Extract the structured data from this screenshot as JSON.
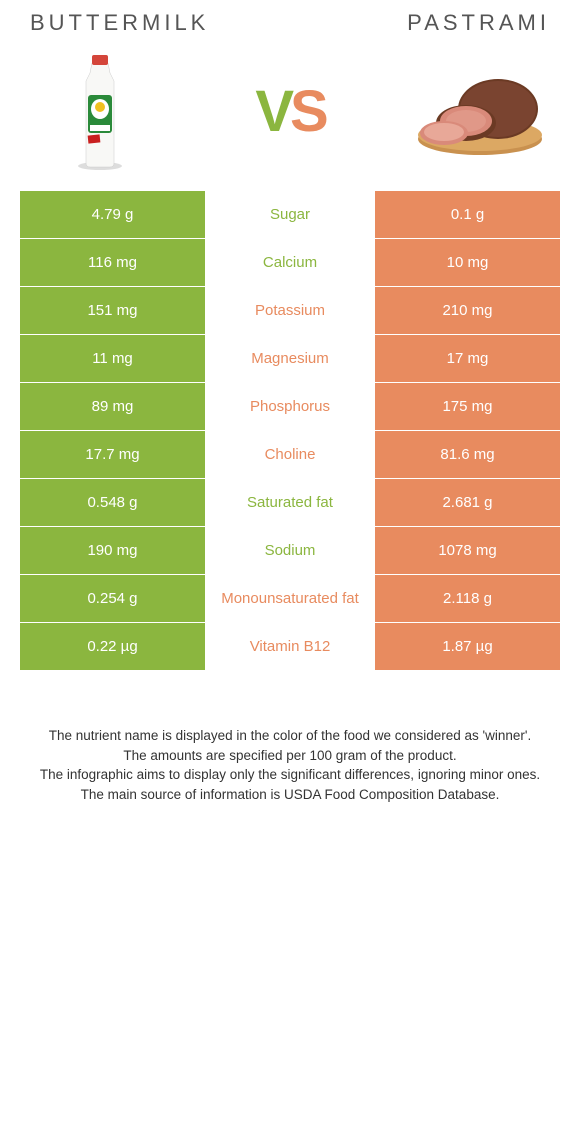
{
  "header": {
    "left_title": "Buttermilk",
    "right_title": "Pastrami"
  },
  "vs": {
    "v": "V",
    "s": "S"
  },
  "colors": {
    "left_bg": "#8bb63f",
    "right_bg": "#e88b5f",
    "left_text": "#8bb63f",
    "right_text": "#e88b5f",
    "row_border": "#ffffff",
    "page_bg": "#ffffff",
    "body_text": "#333333",
    "header_text": "#555555"
  },
  "nutrients": [
    {
      "name": "Sugar",
      "left": "4.79 g",
      "right": "0.1 g",
      "winner": "left"
    },
    {
      "name": "Calcium",
      "left": "116 mg",
      "right": "10 mg",
      "winner": "left"
    },
    {
      "name": "Potassium",
      "left": "151 mg",
      "right": "210 mg",
      "winner": "right"
    },
    {
      "name": "Magnesium",
      "left": "11 mg",
      "right": "17 mg",
      "winner": "right"
    },
    {
      "name": "Phosphorus",
      "left": "89 mg",
      "right": "175 mg",
      "winner": "right"
    },
    {
      "name": "Choline",
      "left": "17.7 mg",
      "right": "81.6 mg",
      "winner": "right"
    },
    {
      "name": "Saturated fat",
      "left": "0.548 g",
      "right": "2.681 g",
      "winner": "left"
    },
    {
      "name": "Sodium",
      "left": "190 mg",
      "right": "1078 mg",
      "winner": "left"
    },
    {
      "name": "Monounsaturated fat",
      "left": "0.254 g",
      "right": "2.118 g",
      "winner": "right"
    },
    {
      "name": "Vitamin B12",
      "left": "0.22 µg",
      "right": "1.87 µg",
      "winner": "right"
    }
  ],
  "footer": {
    "line1": "The nutrient name is displayed in the color of the food we considered as 'winner'.",
    "line2": "The amounts are specified per 100 gram of the product.",
    "line3": "The infographic aims to display only the significant differences, ignoring minor ones.",
    "line4": "The main source of information is USDA Food Composition Database."
  }
}
